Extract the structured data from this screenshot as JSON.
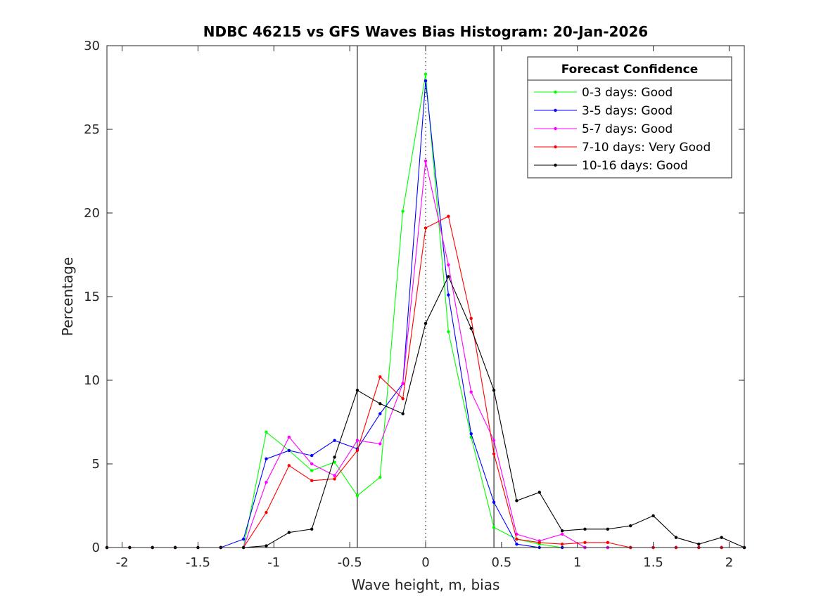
{
  "chart_data": {
    "type": "line",
    "title": "NDBC 46215 vs GFS Waves Bias Histogram: 20-Jan-2026",
    "xlabel": "Wave height, m, bias",
    "ylabel": "Percentage",
    "xlim": [
      -2.1,
      2.1
    ],
    "ylim": [
      0,
      30
    ],
    "xticks": [
      -2,
      -1.5,
      -1,
      -0.5,
      0,
      0.5,
      1,
      1.5,
      2
    ],
    "xtick_labels": [
      "-2",
      "-1.5",
      "-1",
      "-0.5",
      "0",
      "0.5",
      "1",
      "1.5",
      "2"
    ],
    "yticks": [
      0,
      5,
      10,
      15,
      20,
      25,
      30
    ],
    "ytick_labels": [
      "0",
      "5",
      "10",
      "15",
      "20",
      "25",
      "30"
    ],
    "grid": false,
    "reference_lines": [
      {
        "x": -0.45,
        "style": "solid"
      },
      {
        "x": 0,
        "style": "dotted"
      },
      {
        "x": 0.45,
        "style": "solid"
      }
    ],
    "legend": {
      "title": "Forecast Confidence",
      "location": "top-right"
    },
    "x": [
      -2.1,
      -1.95,
      -1.8,
      -1.65,
      -1.5,
      -1.35,
      -1.2,
      -1.05,
      -0.9,
      -0.75,
      -0.6,
      -0.45,
      -0.3,
      -0.15,
      0,
      0.15,
      0.3,
      0.45,
      0.6,
      0.75,
      0.9,
      1.05,
      1.2,
      1.35,
      1.5,
      1.65,
      1.8,
      1.95,
      2.1
    ],
    "series": [
      {
        "name": "0-3 days: Good",
        "color": "#00ff00",
        "values": [
          0,
          0,
          0,
          0,
          0,
          0,
          0,
          6.9,
          5.8,
          4.6,
          5.1,
          3.1,
          4.2,
          20.1,
          28.3,
          12.9,
          6.6,
          1.2,
          0.5,
          0.2,
          0,
          0,
          0,
          0,
          0,
          0,
          0,
          0,
          0
        ]
      },
      {
        "name": "3-5 days: Good",
        "color": "#0000ff",
        "values": [
          0,
          0,
          0,
          0,
          0,
          0,
          0.5,
          5.3,
          5.8,
          5.5,
          6.4,
          5.9,
          8.0,
          9.8,
          27.9,
          15.1,
          6.8,
          2.7,
          0.2,
          0,
          0,
          0,
          0,
          0,
          0,
          0,
          0,
          0,
          0
        ]
      },
      {
        "name": "5-7 days: Good",
        "color": "#ff00ff",
        "values": [
          0,
          0,
          0,
          0,
          0,
          0,
          0,
          3.9,
          6.6,
          5.0,
          4.3,
          6.4,
          6.2,
          9.8,
          23.1,
          16.9,
          9.3,
          6.4,
          0.8,
          0.4,
          0.8,
          0,
          0,
          0,
          0,
          0,
          0,
          0,
          0
        ]
      },
      {
        "name": "7-10 days: Very Good",
        "color": "#ff0000",
        "values": [
          0,
          0,
          0,
          0,
          0,
          0,
          0,
          2.1,
          4.9,
          4.0,
          4.1,
          5.8,
          10.2,
          8.9,
          19.1,
          19.8,
          13.7,
          5.6,
          0.5,
          0.3,
          0.2,
          0.3,
          0.3,
          0,
          0,
          0,
          0,
          0,
          0
        ]
      },
      {
        "name": "10-16 days: Good",
        "color": "#000000",
        "values": [
          0,
          0,
          0,
          0,
          0,
          0,
          0,
          0.1,
          0.9,
          1.1,
          5.4,
          9.4,
          8.6,
          8.0,
          13.4,
          16.2,
          13.1,
          9.4,
          2.8,
          3.3,
          1.0,
          1.1,
          1.1,
          1.3,
          1.9,
          0.6,
          0.2,
          0.6,
          0
        ]
      }
    ]
  }
}
